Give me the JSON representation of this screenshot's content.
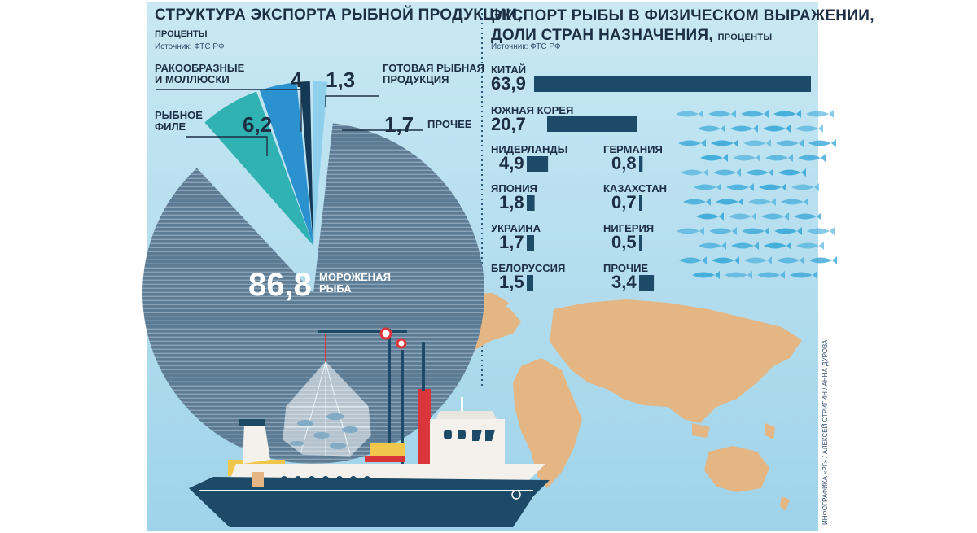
{
  "colors": {
    "background": "#c6e6f1",
    "dark_navy": "#1d4a67",
    "frozen_fish": "#5c7b94",
    "fillet": "#30b1b2",
    "crustaceans": "#2b92cf",
    "prepared": "#153a57",
    "other": "#8ed0ec",
    "land": "#e3b683",
    "fish_school": "#3aa8d8",
    "ship_hull": "#1d4a67",
    "ship_red": "#d9353a",
    "ship_yellow": "#f0c74a"
  },
  "icons": [
    "fish-school-icon",
    "world-map-icon",
    "fishing-ship-icon",
    "fishing-net-icon",
    "crane-icon"
  ],
  "chart_data": [
    {
      "type": "pie",
      "title": "СТРУКТУРА ЭКСПОРТА РЫБНОЙ ПРОДУКЦИИ,",
      "subtitle": "ПРОЦЕНТЫ",
      "source": "Источник: ФТС РФ",
      "slices": [
        {
          "label": "МОРОЖЕНАЯ РЫБА",
          "label_line1": "МОРОЖЕНАЯ",
          "label_line2": "РЫБА",
          "value": 86.8,
          "value_text": "86,8"
        },
        {
          "label": "РЫБНОЕ ФИЛЕ",
          "label_line1": "РЫБНОЕ",
          "label_line2": "ФИЛЕ",
          "value": 6.2,
          "value_text": "6,2"
        },
        {
          "label": "РАКООБРАЗНЫЕ И МОЛЛЮСКИ",
          "label_line1": "РАКООБРАЗНЫЕ",
          "label_line2": "И МОЛЛЮСКИ",
          "value": 4,
          "value_text": "4"
        },
        {
          "label": "ГОТОВАЯ РЫБНАЯ ПРОДУКЦИЯ",
          "label_line1": "ГОТОВАЯ РЫБНАЯ",
          "label_line2": "ПРОДУКЦИЯ",
          "value": 1.3,
          "value_text": "1,3"
        },
        {
          "label": "ПРОЧЕЕ",
          "label_line1": "ПРОЧЕЕ",
          "label_line2": "",
          "value": 1.7,
          "value_text": "1,7"
        }
      ]
    },
    {
      "type": "bar",
      "orientation": "horizontal",
      "title_line1": "ЭКСПОРТ РЫБЫ В ФИЗИЧЕСКОМ ВЫРАЖЕНИИ,",
      "title_line2": "ДОЛИ СТРАН НАЗНАЧЕНИЯ,",
      "title_unit": "ПРОЦЕНТЫ",
      "source": "Источник: ФТС РФ",
      "categories": [
        "КИТАЙ",
        "ЮЖНАЯ КОРЕЯ",
        "НИДЕРЛАНДЫ",
        "ГЕРМАНИЯ",
        "ЯПОНИЯ",
        "КАЗАХСТАН",
        "УКРАИНА",
        "НИГЕРИЯ",
        "БЕЛОРУССИЯ",
        "ПРОЧИЕ"
      ],
      "values": [
        63.9,
        20.7,
        4.9,
        0.8,
        1.8,
        0.7,
        1.7,
        0.5,
        1.5,
        3.4
      ],
      "value_texts": [
        "63,9",
        "20,7",
        "4,9",
        "0,8",
        "1,8",
        "0,7",
        "1,7",
        "0,5",
        "1,5",
        "3,4"
      ]
    }
  ],
  "credit": "ИНФОГРАФИКА «РГ» / АЛЕКСЕЙ СТРИГИН / АННА ДУРОВА"
}
